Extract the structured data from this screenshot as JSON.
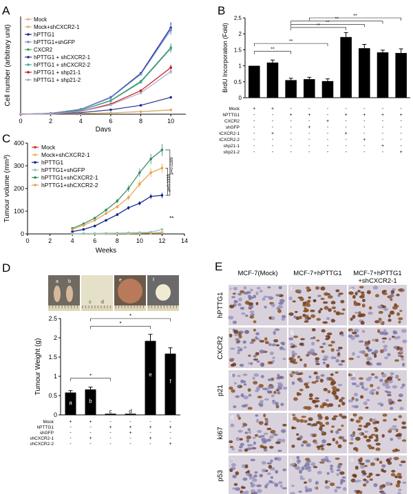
{
  "panel_letters": {
    "A": "A",
    "B": "B",
    "C": "C",
    "D": "D",
    "E": "E"
  },
  "colors": {
    "mock": "#e8a7a0",
    "mock_shcxcr2": "#d4b26a",
    "hpttg1": "#1a1a9a",
    "hpttg1_shgfp": "#6f8ec8",
    "cxcr2": "#4a9a4a",
    "sh1": "#222a8f",
    "sh2": "#43a6a0",
    "sh21_1": "#c01414",
    "sh21_2": "#b1a6c6",
    "c_mock": "#cf2a2a",
    "c_mock_sh": "#e2b84f",
    "c_hpttg1": "#0c1f8a",
    "c_shgfp": "#8bc3c6",
    "c_sh1": "#2e8a5a",
    "c_sh2": "#e5a040",
    "bar": "#000000"
  },
  "chart_data": [
    {
      "id": "A",
      "type": "line",
      "xlabel": "Days",
      "ylabel": "Cell number (arbitrary unit)",
      "x": [
        0,
        2,
        4,
        6,
        8,
        10
      ],
      "xticks": [
        "0",
        "2",
        "4",
        "6",
        "8",
        "10"
      ],
      "xlim": [
        0,
        11
      ],
      "ylim": [
        0,
        2200
      ],
      "series": [
        {
          "name": "Mock",
          "key": "mock",
          "values": [
            0,
            5,
            15,
            30,
            60,
            100
          ]
        },
        {
          "name": "Mock+shCXCR2-1",
          "key": "mock_shcxcr2",
          "values": [
            0,
            5,
            15,
            30,
            55,
            95
          ]
        },
        {
          "name": "hPTTG1",
          "key": "hpttg1",
          "values": [
            0,
            20,
            110,
            380,
            920,
            1950
          ]
        },
        {
          "name": "hPTTG1+shGFP",
          "key": "hpttg1_shgfp",
          "values": [
            0,
            20,
            105,
            370,
            900,
            1900
          ]
        },
        {
          "name": "CXCR2",
          "key": "cxcr2",
          "values": [
            0,
            15,
            90,
            310,
            740,
            1500
          ]
        },
        {
          "name": "hPTTG1 + shCXCR2-1",
          "key": "sh1",
          "values": [
            0,
            8,
            35,
            100,
            200,
            380
          ]
        },
        {
          "name": "hPTTG1 + shCXCR2-2",
          "key": "sh2",
          "values": [
            0,
            15,
            85,
            300,
            720,
            1480
          ]
        },
        {
          "name": "hPTTG1 + shp21-1",
          "key": "sh21_1",
          "values": [
            0,
            12,
            65,
            230,
            530,
            1050
          ]
        },
        {
          "name": "hPTTG1 + shp21-2",
          "key": "sh21_2",
          "values": [
            0,
            10,
            60,
            210,
            480,
            960
          ]
        }
      ]
    },
    {
      "id": "B",
      "type": "bar",
      "ylabel": "BrdU Incorporation (Fold)",
      "ylim": [
        0,
        2.5
      ],
      "yticks": [
        "0",
        "0.5",
        "1",
        "1.5",
        "2",
        "2.5"
      ],
      "values": [
        1.0,
        1.1,
        0.55,
        0.58,
        0.52,
        1.9,
        1.55,
        1.42,
        1.4
      ],
      "errors": [
        0.0,
        0.08,
        0.06,
        0.06,
        0.07,
        0.14,
        0.12,
        0.07,
        0.13
      ],
      "row_labels": [
        "Mock",
        "hPTTG1",
        "CXCR2",
        "shGFP",
        "shCXCR2-1",
        "shCXCR2-2",
        "shp21-1",
        "shp21-2"
      ],
      "matrix": [
        [
          "+",
          "+",
          "-",
          "-",
          "-",
          "-",
          "-",
          "-",
          "-"
        ],
        [
          "-",
          "-",
          "+",
          "+",
          "-",
          "+",
          "+",
          "+",
          "+"
        ],
        [
          "-",
          "-",
          "-",
          "-",
          "+",
          "-",
          "-",
          "-",
          "-"
        ],
        [
          "-",
          "-",
          "-",
          "+",
          "-",
          "-",
          "-",
          "-",
          "-"
        ],
        [
          "-",
          "+",
          "-",
          "-",
          "-",
          "+",
          "-",
          "-",
          "-"
        ],
        [
          "-",
          "-",
          "-",
          "-",
          "-",
          "-",
          "+",
          "-",
          "-"
        ],
        [
          "-",
          "-",
          "-",
          "-",
          "-",
          "-",
          "-",
          "+",
          "-"
        ],
        [
          "-",
          "-",
          "-",
          "-",
          "-",
          "-",
          "-",
          "-",
          "+"
        ]
      ],
      "sig_label": "**"
    },
    {
      "id": "C",
      "type": "line",
      "xlabel": "Weeks",
      "ylabel": "Tumour volume (mm³)",
      "xlim": [
        0,
        14
      ],
      "ylim": [
        0,
        400
      ],
      "xticks": [
        "0",
        "2",
        "4",
        "6",
        "8",
        "10",
        "12",
        "14"
      ],
      "yticks": [
        "0",
        "100",
        "200",
        "300",
        "400"
      ],
      "x": [
        4,
        5,
        6,
        7,
        8,
        9,
        10,
        11,
        12
      ],
      "series": [
        {
          "name": "Mock",
          "key": "c_mock",
          "values": [
            1,
            1,
            1,
            1,
            2,
            2,
            3,
            4,
            6
          ]
        },
        {
          "name": "Mock+shCXCR2-1",
          "key": "c_mock_sh",
          "values": [
            1,
            1,
            1,
            1,
            2,
            2,
            3,
            4,
            5
          ]
        },
        {
          "name": "hPTTG1",
          "key": "c_hpttg1",
          "values": [
            10,
            20,
            35,
            60,
            85,
            115,
            135,
            165,
            170
          ]
        },
        {
          "name": "hPTTG1+shGFP",
          "key": "c_shgfp",
          "values": [
            1,
            2,
            2,
            3,
            4,
            5,
            6,
            8,
            20
          ]
        },
        {
          "name": "hPTTG1+shCXCR2-1",
          "key": "c_sh1",
          "values": [
            25,
            45,
            70,
            105,
            145,
            200,
            270,
            330,
            370
          ]
        },
        {
          "name": "hPTTG1+shCXCR2-2",
          "key": "c_sh2",
          "values": [
            20,
            38,
            60,
            90,
            120,
            160,
            220,
            270,
            290
          ]
        }
      ],
      "annotations": [
        "p=0.0289",
        "p=0.0335",
        "**"
      ]
    },
    {
      "id": "D",
      "type": "bar",
      "ylabel": "Tumour Weight (g)",
      "ylim": [
        0,
        2.5
      ],
      "yticks": [
        "0",
        "0.5",
        "1",
        "1.5",
        "2",
        "2.5"
      ],
      "bar_labels": [
        "a",
        "b",
        "c",
        "d",
        "e",
        "f"
      ],
      "values": [
        0.58,
        0.66,
        0.03,
        0.03,
        1.92,
        1.59
      ],
      "errors": [
        0.05,
        0.06,
        0.0,
        0.0,
        0.17,
        0.15
      ],
      "row_labels": [
        "Mock",
        "hPTTG1",
        "shGFP",
        "shCXCR2-1",
        "shCXCR2-2"
      ],
      "matrix": [
        [
          "+",
          "+",
          "-",
          "-",
          "-",
          "-"
        ],
        [
          "-",
          "-",
          "+",
          "+",
          "+",
          "+"
        ],
        [
          "-",
          "-",
          "-",
          "+",
          "-",
          "-"
        ],
        [
          "-",
          "+",
          "-",
          "-",
          "+",
          "-"
        ],
        [
          "-",
          "-",
          "-",
          "-",
          "-",
          "+"
        ]
      ],
      "photo_labels": [
        "a",
        "b",
        "c",
        "d",
        "e",
        "f"
      ],
      "sig_label": "*"
    }
  ],
  "panel_e": {
    "col_headers": [
      "MCF-7(Mock)",
      "MCF-7+hPTTG1",
      "MCF-7+hPTTG1\n+shCXCR2-1"
    ],
    "col_headers_line1": [
      "MCF-7(Mock)",
      "MCF-7+hPTTG1",
      "MCF-7+hPTTG1"
    ],
    "col_headers_line2": [
      "",
      "",
      "+shCXCR2-1"
    ],
    "row_labels": [
      "hPTTG1",
      "CXCR2",
      "p21",
      "ki67",
      "p53"
    ],
    "tile_letters": [
      [
        "a",
        "f",
        "k"
      ],
      [
        "b",
        "g",
        "l"
      ],
      [
        "c",
        "h",
        "m"
      ],
      [
        "d",
        "i",
        "n"
      ],
      [
        "e",
        "j",
        "o"
      ]
    ],
    "stain_levels": [
      [
        0.15,
        0.85,
        0.8
      ],
      [
        0.3,
        0.5,
        0.35
      ],
      [
        0.15,
        0.8,
        0.2
      ],
      [
        0.35,
        0.75,
        0.8
      ],
      [
        0.15,
        0.15,
        0.7
      ]
    ]
  }
}
